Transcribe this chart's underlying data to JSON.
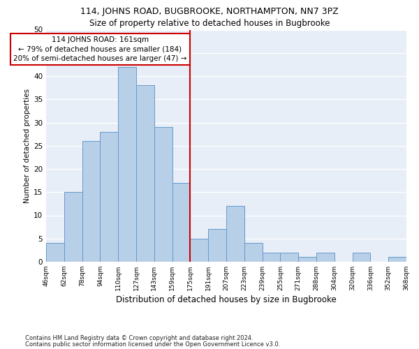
{
  "title": "114, JOHNS ROAD, BUGBROOKE, NORTHAMPTON, NN7 3PZ",
  "subtitle": "Size of property relative to detached houses in Bugbrooke",
  "xlabel": "Distribution of detached houses by size in Bugbrooke",
  "ylabel": "Number of detached properties",
  "bar_values": [
    4,
    15,
    26,
    28,
    42,
    38,
    29,
    17,
    5,
    7,
    12,
    4,
    2,
    2,
    1,
    2,
    0,
    2,
    0,
    1
  ],
  "all_labels": [
    "46sqm",
    "62sqm",
    "78sqm",
    "94sqm",
    "110sqm",
    "127sqm",
    "143sqm",
    "159sqm",
    "175sqm",
    "191sqm",
    "207sqm",
    "223sqm",
    "239sqm",
    "255sqm",
    "271sqm",
    "288sqm",
    "304sqm",
    "320sqm",
    "336sqm",
    "352sqm",
    "368sqm"
  ],
  "bar_color": "#b8cfe8",
  "bar_edge_color": "#6699cc",
  "bg_color": "#e8eef7",
  "grid_color": "#ffffff",
  "vline_color": "#cc0000",
  "vline_index": 7.5,
  "annotation_line1": "114 JOHNS ROAD: 161sqm",
  "annotation_line2": "← 79% of detached houses are smaller (184)",
  "annotation_line3": "20% of semi-detached houses are larger (47) →",
  "annotation_box_edgecolor": "#cc0000",
  "ylim": [
    0,
    50
  ],
  "yticks": [
    0,
    5,
    10,
    15,
    20,
    25,
    30,
    35,
    40,
    45,
    50
  ],
  "title_fontsize": 9,
  "subtitle_fontsize": 8.5,
  "ylabel_fontsize": 7.5,
  "xlabel_fontsize": 8.5,
  "footnote1": "Contains HM Land Registry data © Crown copyright and database right 2024.",
  "footnote2": "Contains public sector information licensed under the Open Government Licence v3.0."
}
